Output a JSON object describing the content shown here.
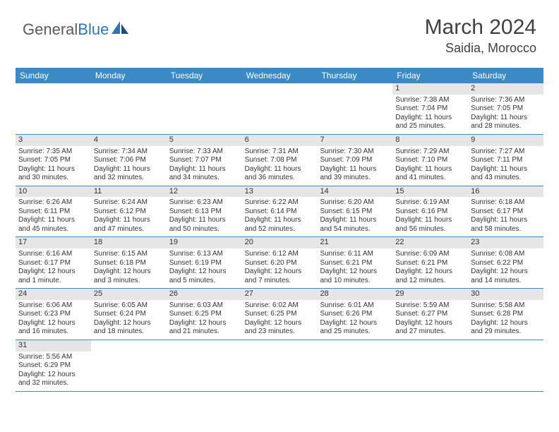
{
  "logo": {
    "part1": "General",
    "part2": "Blue"
  },
  "header": {
    "month": "March 2024",
    "location": "Saidia, Morocco"
  },
  "colors": {
    "header_bg": "#3b8ac4",
    "header_text": "#ffffff",
    "daynum_bg": "#e6e6e6",
    "row_border": "#3b8ac4",
    "logo_gray": "#5a5a5a",
    "logo_blue": "#2e75b6"
  },
  "day_names": [
    "Sunday",
    "Monday",
    "Tuesday",
    "Wednesday",
    "Thursday",
    "Friday",
    "Saturday"
  ],
  "weeks": [
    [
      {
        "blank": true
      },
      {
        "blank": true
      },
      {
        "blank": true
      },
      {
        "blank": true
      },
      {
        "blank": true
      },
      {
        "n": "1",
        "sunrise": "Sunrise: 7:38 AM",
        "sunset": "Sunset: 7:04 PM",
        "daylight": "Daylight: 11 hours and 25 minutes."
      },
      {
        "n": "2",
        "sunrise": "Sunrise: 7:36 AM",
        "sunset": "Sunset: 7:05 PM",
        "daylight": "Daylight: 11 hours and 28 minutes."
      }
    ],
    [
      {
        "n": "3",
        "sunrise": "Sunrise: 7:35 AM",
        "sunset": "Sunset: 7:05 PM",
        "daylight": "Daylight: 11 hours and 30 minutes."
      },
      {
        "n": "4",
        "sunrise": "Sunrise: 7:34 AM",
        "sunset": "Sunset: 7:06 PM",
        "daylight": "Daylight: 11 hours and 32 minutes."
      },
      {
        "n": "5",
        "sunrise": "Sunrise: 7:33 AM",
        "sunset": "Sunset: 7:07 PM",
        "daylight": "Daylight: 11 hours and 34 minutes."
      },
      {
        "n": "6",
        "sunrise": "Sunrise: 7:31 AM",
        "sunset": "Sunset: 7:08 PM",
        "daylight": "Daylight: 11 hours and 36 minutes."
      },
      {
        "n": "7",
        "sunrise": "Sunrise: 7:30 AM",
        "sunset": "Sunset: 7:09 PM",
        "daylight": "Daylight: 11 hours and 39 minutes."
      },
      {
        "n": "8",
        "sunrise": "Sunrise: 7:29 AM",
        "sunset": "Sunset: 7:10 PM",
        "daylight": "Daylight: 11 hours and 41 minutes."
      },
      {
        "n": "9",
        "sunrise": "Sunrise: 7:27 AM",
        "sunset": "Sunset: 7:11 PM",
        "daylight": "Daylight: 11 hours and 43 minutes."
      }
    ],
    [
      {
        "n": "10",
        "sunrise": "Sunrise: 6:26 AM",
        "sunset": "Sunset: 6:11 PM",
        "daylight": "Daylight: 11 hours and 45 minutes."
      },
      {
        "n": "11",
        "sunrise": "Sunrise: 6:24 AM",
        "sunset": "Sunset: 6:12 PM",
        "daylight": "Daylight: 11 hours and 47 minutes."
      },
      {
        "n": "12",
        "sunrise": "Sunrise: 6:23 AM",
        "sunset": "Sunset: 6:13 PM",
        "daylight": "Daylight: 11 hours and 50 minutes."
      },
      {
        "n": "13",
        "sunrise": "Sunrise: 6:22 AM",
        "sunset": "Sunset: 6:14 PM",
        "daylight": "Daylight: 11 hours and 52 minutes."
      },
      {
        "n": "14",
        "sunrise": "Sunrise: 6:20 AM",
        "sunset": "Sunset: 6:15 PM",
        "daylight": "Daylight: 11 hours and 54 minutes."
      },
      {
        "n": "15",
        "sunrise": "Sunrise: 6:19 AM",
        "sunset": "Sunset: 6:16 PM",
        "daylight": "Daylight: 11 hours and 56 minutes."
      },
      {
        "n": "16",
        "sunrise": "Sunrise: 6:18 AM",
        "sunset": "Sunset: 6:17 PM",
        "daylight": "Daylight: 11 hours and 58 minutes."
      }
    ],
    [
      {
        "n": "17",
        "sunrise": "Sunrise: 6:16 AM",
        "sunset": "Sunset: 6:17 PM",
        "daylight": "Daylight: 12 hours and 1 minute."
      },
      {
        "n": "18",
        "sunrise": "Sunrise: 6:15 AM",
        "sunset": "Sunset: 6:18 PM",
        "daylight": "Daylight: 12 hours and 3 minutes."
      },
      {
        "n": "19",
        "sunrise": "Sunrise: 6:13 AM",
        "sunset": "Sunset: 6:19 PM",
        "daylight": "Daylight: 12 hours and 5 minutes."
      },
      {
        "n": "20",
        "sunrise": "Sunrise: 6:12 AM",
        "sunset": "Sunset: 6:20 PM",
        "daylight": "Daylight: 12 hours and 7 minutes."
      },
      {
        "n": "21",
        "sunrise": "Sunrise: 6:11 AM",
        "sunset": "Sunset: 6:21 PM",
        "daylight": "Daylight: 12 hours and 10 minutes."
      },
      {
        "n": "22",
        "sunrise": "Sunrise: 6:09 AM",
        "sunset": "Sunset: 6:21 PM",
        "daylight": "Daylight: 12 hours and 12 minutes."
      },
      {
        "n": "23",
        "sunrise": "Sunrise: 6:08 AM",
        "sunset": "Sunset: 6:22 PM",
        "daylight": "Daylight: 12 hours and 14 minutes."
      }
    ],
    [
      {
        "n": "24",
        "sunrise": "Sunrise: 6:06 AM",
        "sunset": "Sunset: 6:23 PM",
        "daylight": "Daylight: 12 hours and 16 minutes."
      },
      {
        "n": "25",
        "sunrise": "Sunrise: 6:05 AM",
        "sunset": "Sunset: 6:24 PM",
        "daylight": "Daylight: 12 hours and 18 minutes."
      },
      {
        "n": "26",
        "sunrise": "Sunrise: 6:03 AM",
        "sunset": "Sunset: 6:25 PM",
        "daylight": "Daylight: 12 hours and 21 minutes."
      },
      {
        "n": "27",
        "sunrise": "Sunrise: 6:02 AM",
        "sunset": "Sunset: 6:25 PM",
        "daylight": "Daylight: 12 hours and 23 minutes."
      },
      {
        "n": "28",
        "sunrise": "Sunrise: 6:01 AM",
        "sunset": "Sunset: 6:26 PM",
        "daylight": "Daylight: 12 hours and 25 minutes."
      },
      {
        "n": "29",
        "sunrise": "Sunrise: 5:59 AM",
        "sunset": "Sunset: 6:27 PM",
        "daylight": "Daylight: 12 hours and 27 minutes."
      },
      {
        "n": "30",
        "sunrise": "Sunrise: 5:58 AM",
        "sunset": "Sunset: 6:28 PM",
        "daylight": "Daylight: 12 hours and 29 minutes."
      }
    ],
    [
      {
        "n": "31",
        "sunrise": "Sunrise: 5:56 AM",
        "sunset": "Sunset: 6:29 PM",
        "daylight": "Daylight: 12 hours and 32 minutes."
      },
      {
        "blank": true
      },
      {
        "blank": true
      },
      {
        "blank": true
      },
      {
        "blank": true
      },
      {
        "blank": true
      },
      {
        "blank": true
      }
    ]
  ]
}
